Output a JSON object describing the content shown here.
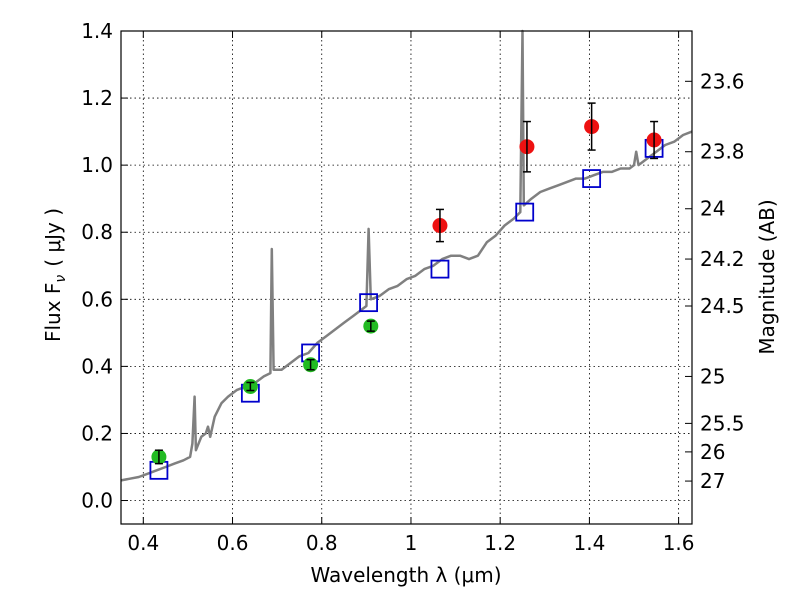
{
  "chart_data": {
    "type": "scatter",
    "xlabel": "Wavelength  λ (μm)",
    "ylabel_left": "Flux  F",
    "ylabel_left_sub": "ν",
    "ylabel_left_unit": "( μJy )",
    "ylabel_right": "Magnitude (AB)",
    "xlim": [
      0.35,
      1.63
    ],
    "ylim": [
      -0.07,
      1.4
    ],
    "x_ticks": [
      0.4,
      0.6,
      0.8,
      1.0,
      1.2,
      1.4,
      1.6
    ],
    "x_tick_labels": [
      "0.4",
      "0.6",
      "0.8",
      "1",
      "1.2",
      "1.4",
      "1.6"
    ],
    "y_ticks": [
      0.0,
      0.2,
      0.4,
      0.6,
      0.8,
      1.0,
      1.2,
      1.4
    ],
    "y_tick_labels": [
      "0.0",
      "0.2",
      "0.4",
      "0.6",
      "0.8",
      "1.0",
      "1.2",
      "1.4"
    ],
    "right_ticks": [
      {
        "mag": "23.6",
        "flux": 1.25
      },
      {
        "mag": "23.8",
        "flux": 1.04
      },
      {
        "mag": "24",
        "flux": 0.87
      },
      {
        "mag": "24.2",
        "flux": 0.72
      },
      {
        "mag": "24.5",
        "flux": 0.58
      },
      {
        "mag": "25",
        "flux": 0.37
      },
      {
        "mag": "25.5",
        "flux": 0.23
      },
      {
        "mag": "26",
        "flux": 0.145
      },
      {
        "mag": "27",
        "flux": 0.058
      }
    ],
    "grid": true,
    "series": [
      {
        "kind": "line",
        "color": "#808080",
        "points": [
          [
            0.35,
            0.06
          ],
          [
            0.37,
            0.065
          ],
          [
            0.39,
            0.07
          ],
          [
            0.41,
            0.08
          ],
          [
            0.43,
            0.09
          ],
          [
            0.45,
            0.1
          ],
          [
            0.47,
            0.11
          ],
          [
            0.49,
            0.12
          ],
          [
            0.505,
            0.13
          ],
          [
            0.51,
            0.17
          ],
          [
            0.515,
            0.31
          ],
          [
            0.518,
            0.15
          ],
          [
            0.53,
            0.19
          ],
          [
            0.54,
            0.2
          ],
          [
            0.545,
            0.22
          ],
          [
            0.55,
            0.19
          ],
          [
            0.56,
            0.25
          ],
          [
            0.575,
            0.29
          ],
          [
            0.59,
            0.31
          ],
          [
            0.61,
            0.33
          ],
          [
            0.63,
            0.34
          ],
          [
            0.65,
            0.35
          ],
          [
            0.67,
            0.37
          ],
          [
            0.685,
            0.38
          ],
          [
            0.688,
            0.75
          ],
          [
            0.692,
            0.39
          ],
          [
            0.71,
            0.39
          ],
          [
            0.73,
            0.41
          ],
          [
            0.75,
            0.43
          ],
          [
            0.77,
            0.44
          ],
          [
            0.79,
            0.47
          ],
          [
            0.81,
            0.49
          ],
          [
            0.83,
            0.51
          ],
          [
            0.85,
            0.53
          ],
          [
            0.87,
            0.55
          ],
          [
            0.9,
            0.58
          ],
          [
            0.905,
            0.81
          ],
          [
            0.91,
            0.6
          ],
          [
            0.93,
            0.61
          ],
          [
            0.95,
            0.63
          ],
          [
            0.97,
            0.64
          ],
          [
            0.99,
            0.66
          ],
          [
            1.01,
            0.67
          ],
          [
            1.03,
            0.69
          ],
          [
            1.05,
            0.7
          ],
          [
            1.07,
            0.72
          ],
          [
            1.09,
            0.73
          ],
          [
            1.11,
            0.73
          ],
          [
            1.13,
            0.72
          ],
          [
            1.15,
            0.73
          ],
          [
            1.17,
            0.77
          ],
          [
            1.19,
            0.79
          ],
          [
            1.21,
            0.82
          ],
          [
            1.23,
            0.84
          ],
          [
            1.245,
            0.86
          ],
          [
            1.25,
            1.4
          ],
          [
            1.253,
            0.88
          ],
          [
            1.27,
            0.9
          ],
          [
            1.29,
            0.92
          ],
          [
            1.31,
            0.93
          ],
          [
            1.33,
            0.94
          ],
          [
            1.35,
            0.95
          ],
          [
            1.37,
            0.96
          ],
          [
            1.39,
            0.96
          ],
          [
            1.41,
            0.97
          ],
          [
            1.43,
            0.98
          ],
          [
            1.45,
            0.98
          ],
          [
            1.47,
            0.99
          ],
          [
            1.49,
            0.99
          ],
          [
            1.5,
            1.0
          ],
          [
            1.505,
            1.04
          ],
          [
            1.51,
            1.0
          ],
          [
            1.53,
            1.02
          ],
          [
            1.55,
            1.04
          ],
          [
            1.57,
            1.06
          ],
          [
            1.59,
            1.07
          ],
          [
            1.61,
            1.09
          ],
          [
            1.63,
            1.1
          ]
        ]
      },
      {
        "kind": "open-square",
        "color": "#0000cc",
        "points": [
          [
            0.435,
            0.09
          ],
          [
            0.64,
            0.32
          ],
          [
            0.775,
            0.44
          ],
          [
            0.905,
            0.59
          ],
          [
            1.065,
            0.69
          ],
          [
            1.255,
            0.86
          ],
          [
            1.405,
            0.96
          ],
          [
            1.545,
            1.05
          ]
        ]
      },
      {
        "kind": "errorbar-dot",
        "color": "#22bb22",
        "points": [
          {
            "x": 0.435,
            "y": 0.13,
            "err": 0.02
          },
          {
            "x": 0.64,
            "y": 0.34,
            "err": 0.012
          },
          {
            "x": 0.775,
            "y": 0.405,
            "err": 0.015
          },
          {
            "x": 0.91,
            "y": 0.52,
            "err": 0.015
          }
        ]
      },
      {
        "kind": "errorbar-dot",
        "color": "#ee1111",
        "points": [
          {
            "x": 1.065,
            "y": 0.82,
            "err": 0.048
          },
          {
            "x": 1.26,
            "y": 1.055,
            "err": 0.075
          },
          {
            "x": 1.405,
            "y": 1.115,
            "err": 0.07
          },
          {
            "x": 1.545,
            "y": 1.075,
            "err": 0.055
          }
        ]
      }
    ]
  }
}
